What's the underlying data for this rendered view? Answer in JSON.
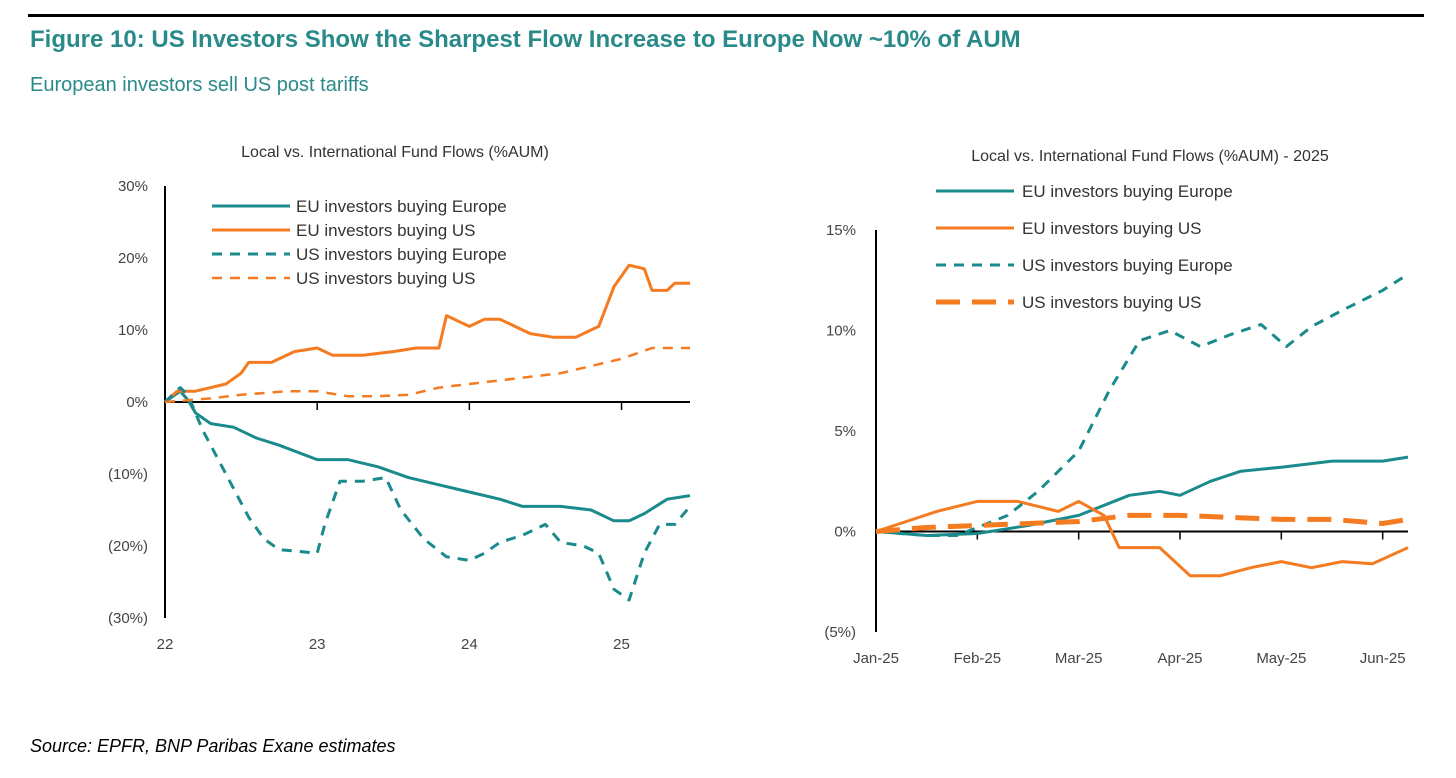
{
  "figure": {
    "title": "Figure 10: US Investors Show the Sharpest Flow Increase to Europe Now ~10% of AUM",
    "subtitle": "European investors sell US post tariffs",
    "source": "Source:  EPFR, BNP Paribas Exane estimates"
  },
  "colors": {
    "teal": "#1b8a8c",
    "orange": "#f47b20",
    "title": "#2a8a8a"
  },
  "chart_data": [
    {
      "type": "line",
      "title": "Local vs. International Fund Flows (%AUM)",
      "xlabel": "",
      "ylabel": "",
      "x_ticks": [
        22,
        23,
        24,
        25
      ],
      "x_tick_labels": [
        "22",
        "23",
        "24",
        "25"
      ],
      "xlim": [
        22,
        25.45
      ],
      "ylim": [
        -30,
        30
      ],
      "y_ticks": [
        30,
        20,
        10,
        0,
        -10,
        -20,
        -30
      ],
      "y_tick_labels": [
        "30%",
        "20%",
        "10%",
        "0%",
        "(10%)",
        "(20%)",
        "(30%)"
      ],
      "legend_position": "top-left",
      "series": [
        {
          "name": "EU investors buying Europe",
          "color": "teal",
          "dashed": false,
          "points": [
            [
              22,
              0
            ],
            [
              22.1,
              1.5
            ],
            [
              22.15,
              0.3
            ],
            [
              22.2,
              -1.5
            ],
            [
              22.3,
              -3
            ],
            [
              22.45,
              -3.5
            ],
            [
              22.6,
              -5
            ],
            [
              22.75,
              -6
            ],
            [
              23,
              -8
            ],
            [
              23.2,
              -8
            ],
            [
              23.4,
              -9
            ],
            [
              23.6,
              -10.5
            ],
            [
              23.8,
              -11.5
            ],
            [
              24,
              -12.5
            ],
            [
              24.2,
              -13.5
            ],
            [
              24.35,
              -14.5
            ],
            [
              24.6,
              -14.5
            ],
            [
              24.8,
              -15
            ],
            [
              24.95,
              -16.5
            ],
            [
              25.05,
              -16.5
            ],
            [
              25.15,
              -15.5
            ],
            [
              25.3,
              -13.5
            ],
            [
              25.45,
              -13
            ]
          ]
        },
        {
          "name": "EU investors buying US",
          "color": "orange",
          "dashed": false,
          "points": [
            [
              22,
              0
            ],
            [
              22.08,
              1.5
            ],
            [
              22.15,
              1.5
            ],
            [
              22.2,
              1.5
            ],
            [
              22.3,
              2
            ],
            [
              22.4,
              2.5
            ],
            [
              22.5,
              4
            ],
            [
              22.55,
              5.5
            ],
            [
              22.7,
              5.5
            ],
            [
              22.85,
              7
            ],
            [
              23,
              7.5
            ],
            [
              23.1,
              6.5
            ],
            [
              23.3,
              6.5
            ],
            [
              23.5,
              7
            ],
            [
              23.65,
              7.5
            ],
            [
              23.8,
              7.5
            ],
            [
              23.85,
              12
            ],
            [
              23.95,
              11
            ],
            [
              24,
              10.5
            ],
            [
              24.1,
              11.5
            ],
            [
              24.2,
              11.5
            ],
            [
              24.4,
              9.5
            ],
            [
              24.55,
              9
            ],
            [
              24.7,
              9
            ],
            [
              24.85,
              10.5
            ],
            [
              24.95,
              16
            ],
            [
              25.05,
              19
            ],
            [
              25.15,
              18.5
            ],
            [
              25.2,
              15.5
            ],
            [
              25.3,
              15.5
            ],
            [
              25.35,
              16.5
            ],
            [
              25.45,
              16.5
            ]
          ]
        },
        {
          "name": "US investors buying Europe",
          "color": "teal",
          "dashed": true,
          "points": [
            [
              22,
              0
            ],
            [
              22.1,
              2
            ],
            [
              22.15,
              1
            ],
            [
              22.25,
              -4
            ],
            [
              22.35,
              -8
            ],
            [
              22.45,
              -12
            ],
            [
              22.55,
              -16
            ],
            [
              22.65,
              -19
            ],
            [
              22.75,
              -20.5
            ],
            [
              23,
              -21
            ],
            [
              23.05,
              -17
            ],
            [
              23.15,
              -11
            ],
            [
              23.3,
              -11
            ],
            [
              23.45,
              -10.5
            ],
            [
              23.55,
              -15
            ],
            [
              23.7,
              -19
            ],
            [
              23.85,
              -21.5
            ],
            [
              24,
              -22
            ],
            [
              24.1,
              -21
            ],
            [
              24.2,
              -19.5
            ],
            [
              24.35,
              -18.5
            ],
            [
              24.5,
              -17
            ],
            [
              24.6,
              -19.5
            ],
            [
              24.75,
              -20
            ],
            [
              24.85,
              -21
            ],
            [
              24.95,
              -26
            ],
            [
              25.05,
              -27.5
            ],
            [
              25.15,
              -21
            ],
            [
              25.25,
              -17
            ],
            [
              25.35,
              -17
            ],
            [
              25.45,
              -14.5
            ]
          ]
        },
        {
          "name": "US investors buying US",
          "color": "orange",
          "dashed": true,
          "points": [
            [
              22,
              0
            ],
            [
              22.3,
              0.5
            ],
            [
              22.5,
              1
            ],
            [
              22.8,
              1.5
            ],
            [
              23,
              1.5
            ],
            [
              23.2,
              0.8
            ],
            [
              23.4,
              0.8
            ],
            [
              23.6,
              1
            ],
            [
              23.8,
              2
            ],
            [
              24,
              2.5
            ],
            [
              24.2,
              3
            ],
            [
              24.4,
              3.5
            ],
            [
              24.6,
              4
            ],
            [
              24.8,
              5
            ],
            [
              25,
              6
            ],
            [
              25.2,
              7.5
            ],
            [
              25.45,
              7.5
            ]
          ]
        }
      ]
    },
    {
      "type": "line",
      "title": "Local vs. International Fund Flows (%AUM) - 2025",
      "xlabel": "",
      "ylabel": "",
      "x_ticks": [
        0,
        1,
        2,
        3,
        4,
        5
      ],
      "x_tick_labels": [
        "Jan-25",
        "Feb-25",
        "Mar-25",
        "Apr-25",
        "May-25",
        "Jun-25"
      ],
      "xlim": [
        0,
        5.25
      ],
      "ylim": [
        -5,
        15
      ],
      "y_ticks": [
        15,
        10,
        5,
        0,
        -5
      ],
      "y_tick_labels": [
        "15%",
        "10%",
        "5%",
        "0%",
        "(5%)"
      ],
      "legend_position": "top-left",
      "series": [
        {
          "name": "EU investors buying Europe",
          "color": "teal",
          "dashed": false,
          "points": [
            [
              0,
              0
            ],
            [
              0.5,
              -0.2
            ],
            [
              1,
              -0.1
            ],
            [
              1.5,
              0.3
            ],
            [
              2,
              0.8
            ],
            [
              2.5,
              1.8
            ],
            [
              2.8,
              2
            ],
            [
              3,
              1.8
            ],
            [
              3.3,
              2.5
            ],
            [
              3.6,
              3
            ],
            [
              4,
              3.2
            ],
            [
              4.5,
              3.5
            ],
            [
              5,
              3.5
            ],
            [
              5.25,
              3.7
            ]
          ]
        },
        {
          "name": "EU investors buying US",
          "color": "orange",
          "dashed": false,
          "points": [
            [
              0,
              0
            ],
            [
              0.3,
              0.5
            ],
            [
              0.6,
              1
            ],
            [
              1,
              1.5
            ],
            [
              1.4,
              1.5
            ],
            [
              1.8,
              1
            ],
            [
              2,
              1.5
            ],
            [
              2.25,
              0.8
            ],
            [
              2.4,
              -0.8
            ],
            [
              2.8,
              -0.8
            ],
            [
              3.1,
              -2.2
            ],
            [
              3.4,
              -2.2
            ],
            [
              3.7,
              -1.8
            ],
            [
              4,
              -1.5
            ],
            [
              4.3,
              -1.8
            ],
            [
              4.6,
              -1.5
            ],
            [
              4.9,
              -1.6
            ],
            [
              5.25,
              -0.8
            ]
          ]
        },
        {
          "name": "US investors buying Europe",
          "color": "teal",
          "dashed": true,
          "points": [
            [
              0,
              0
            ],
            [
              0.5,
              -0.2
            ],
            [
              0.8,
              -0.2
            ],
            [
              1,
              0.2
            ],
            [
              1.3,
              0.8
            ],
            [
              1.6,
              2
            ],
            [
              2,
              4
            ],
            [
              2.3,
              7
            ],
            [
              2.6,
              9.5
            ],
            [
              2.9,
              10
            ],
            [
              3.2,
              9.2
            ],
            [
              3.5,
              9.8
            ],
            [
              3.8,
              10.3
            ],
            [
              4.05,
              9.2
            ],
            [
              4.3,
              10.2
            ],
            [
              4.6,
              11
            ],
            [
              5,
              12
            ],
            [
              5.25,
              12.8
            ]
          ]
        },
        {
          "name": "US investors buying US",
          "color": "orange",
          "dashed": true,
          "points": [
            [
              0,
              0
            ],
            [
              0.5,
              0.2
            ],
            [
              1,
              0.3
            ],
            [
              1.5,
              0.4
            ],
            [
              2,
              0.5
            ],
            [
              2.5,
              0.8
            ],
            [
              3,
              0.8
            ],
            [
              3.5,
              0.7
            ],
            [
              4,
              0.6
            ],
            [
              4.5,
              0.6
            ],
            [
              5,
              0.4
            ],
            [
              5.25,
              0.6
            ]
          ]
        }
      ]
    }
  ]
}
